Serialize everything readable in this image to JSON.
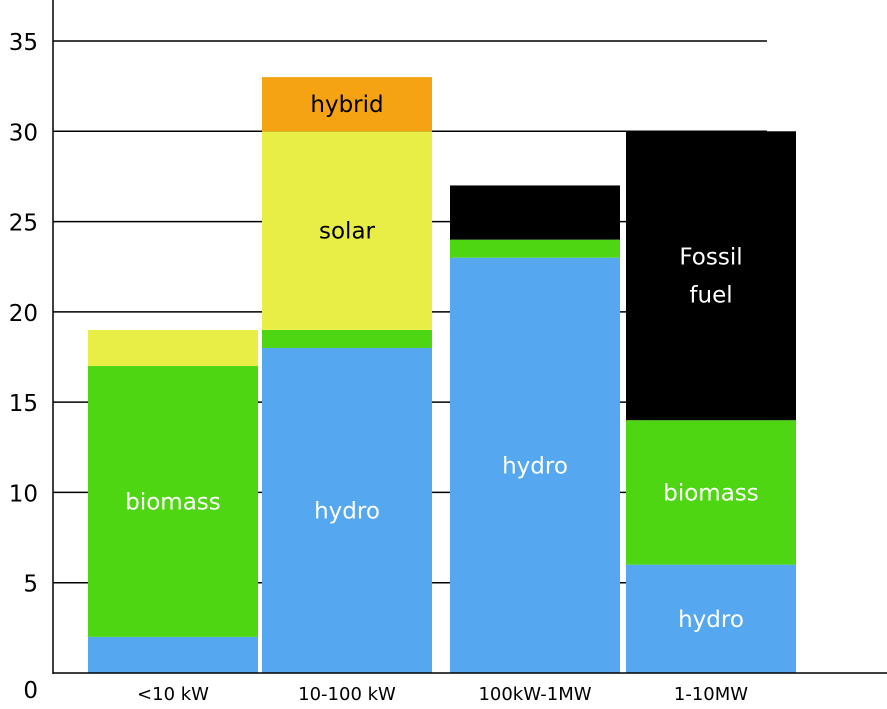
{
  "chart_data": {
    "type": "bar",
    "stacked": true,
    "categories": [
      "<10 kW",
      "10-100 kW",
      "100kW-1MW",
      "1-10MW"
    ],
    "ylim": [
      0,
      35
    ],
    "yticks": [
      "0",
      "5",
      "10",
      "15",
      "20",
      "25",
      "30",
      "35"
    ],
    "grid": true,
    "bars": [
      {
        "category": "<10 kW",
        "segments": [
          {
            "kind": "hydro",
            "from": 0,
            "to": 2,
            "label": "",
            "color": "#55a7ef",
            "text_color": "#ffffff"
          },
          {
            "kind": "biomass",
            "from": 2,
            "to": 17,
            "label": "biomass",
            "color": "#4fd613",
            "text_color": "#ffffff"
          },
          {
            "kind": "solar",
            "from": 17,
            "to": 19,
            "label": "",
            "color": "#e8ee45",
            "text_color": "#000000"
          }
        ]
      },
      {
        "category": "10-100 kW",
        "segments": [
          {
            "kind": "hydro",
            "from": 0,
            "to": 18,
            "label": "hydro",
            "color": "#55a7ef",
            "text_color": "#ffffff"
          },
          {
            "kind": "biomass",
            "from": 18,
            "to": 19,
            "label": "",
            "color": "#4fd613",
            "text_color": "#ffffff"
          },
          {
            "kind": "solar",
            "from": 19,
            "to": 30,
            "label": "solar",
            "color": "#e8ee45",
            "text_color": "#000000"
          },
          {
            "kind": "hybrid",
            "from": 30,
            "to": 33,
            "label": "hybrid",
            "color": "#f5a313",
            "text_color": "#000000"
          }
        ]
      },
      {
        "category": "100kW-1MW",
        "segments": [
          {
            "kind": "hydro",
            "from": 0,
            "to": 23,
            "label": "hydro",
            "color": "#55a7ef",
            "text_color": "#ffffff"
          },
          {
            "kind": "biomass",
            "from": 23,
            "to": 24,
            "label": "",
            "color": "#4fd613",
            "text_color": "#ffffff"
          },
          {
            "kind": "fossil",
            "from": 24,
            "to": 27,
            "label": "",
            "color": "#000000",
            "text_color": "#ffffff"
          }
        ]
      },
      {
        "category": "1-10MW",
        "segments": [
          {
            "kind": "hydro",
            "from": 0,
            "to": 6,
            "label": "hydro",
            "color": "#55a7ef",
            "text_color": "#ffffff"
          },
          {
            "kind": "biomass",
            "from": 6,
            "to": 14,
            "label": "biomass",
            "color": "#4fd613",
            "text_color": "#ffffff"
          },
          {
            "kind": "fossil",
            "from": 14,
            "to": 30,
            "label": "Fossil\nfuel",
            "color": "#000000",
            "text_color": "#ffffff"
          }
        ]
      }
    ]
  }
}
